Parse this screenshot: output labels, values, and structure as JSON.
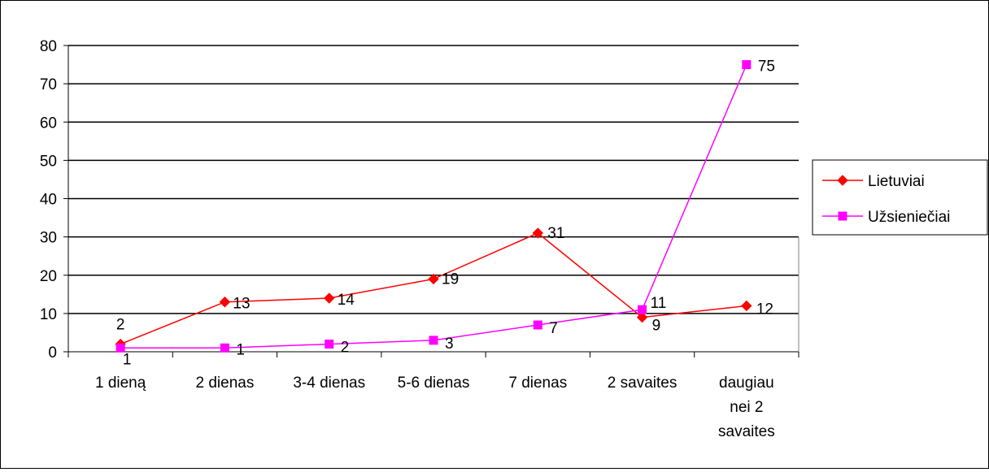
{
  "chart_data": {
    "type": "line",
    "categories": [
      "1 dieną",
      "2 dienas",
      "3-4 dienas",
      "5-6 dienas",
      "7 dienas",
      "2 savaites",
      "daugiau nei 2 savaites"
    ],
    "category_lines": [
      [
        "1 dieną"
      ],
      [
        "2 dienas"
      ],
      [
        "3-4 dienas"
      ],
      [
        "5-6 dienas"
      ],
      [
        "7 dienas"
      ],
      [
        "2 savaites"
      ],
      [
        "daugiau",
        "nei 2",
        "savaites"
      ]
    ],
    "series": [
      {
        "name": "Lietuviai",
        "values": [
          2,
          13,
          14,
          19,
          31,
          9,
          12
        ],
        "color": "#ff0000",
        "marker": "diamond"
      },
      {
        "name": "Užsieniečiai",
        "values": [
          1,
          1,
          2,
          3,
          7,
          11,
          75
        ],
        "color": "#ff00ff",
        "marker": "square"
      }
    ],
    "ylim": [
      0,
      80
    ],
    "yticks": [
      0,
      10,
      20,
      30,
      40,
      50,
      60,
      70,
      80
    ],
    "grid": true,
    "legend_position": "right",
    "title": "",
    "xlabel": "",
    "ylabel": ""
  }
}
